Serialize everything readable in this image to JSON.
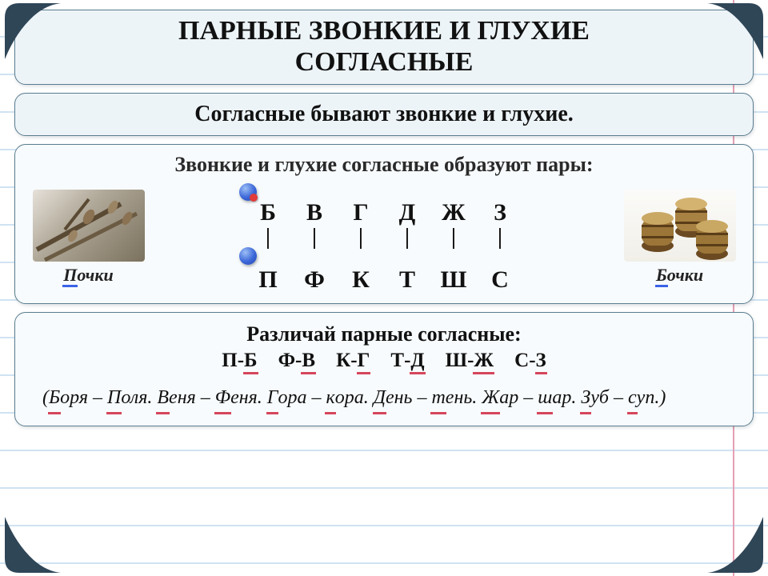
{
  "colors": {
    "card_bg": "#edf4f8",
    "card_bg_light": "#f7fbfd",
    "card_border": "#5b7d8f",
    "rule_line": "#d0e3f2",
    "margin_line": "#e59fb3",
    "underline_blue": "#3b63e6",
    "underline_red": "#d6465c",
    "dot_blue": "#3b66d8",
    "dot_red": "#e03a3a",
    "text": "#111111"
  },
  "typography": {
    "family": "Times New Roman",
    "title_pt": 34,
    "subtitle_pt": 28,
    "heading_pt": 26,
    "letter_pt": 30,
    "pair_pt": 25,
    "example_pt": 24,
    "side_label_pt": 22
  },
  "title_line1": "ПАРНЫЕ ЗВОНКИЕ И ГЛУХИЕ",
  "title_line2": "СОГЛАСНЫЕ",
  "subtitle": "Согласные бывают звонкие и глухие.",
  "pairs_heading": "Звонкие и глухие согласные образуют пары:",
  "left_image": {
    "semantic": "tree-branches-buds-photo",
    "label_head": "П",
    "label_rest": "очки"
  },
  "right_image": {
    "semantic": "wooden-barrels-photo",
    "label_head": "Б",
    "label_rest": "очки"
  },
  "voiced": [
    "Б",
    "В",
    "Г",
    "Д",
    "Ж",
    "З"
  ],
  "voiceless": [
    "П",
    "Ф",
    "К",
    "Т",
    "Ш",
    "С"
  ],
  "separator_char": "|",
  "distinguish_heading": "Различай парные согласные:",
  "pairs_list": [
    {
      "a": "П",
      "b": "Б"
    },
    {
      "a": "Ф",
      "b": "В"
    },
    {
      "a": "К",
      "b": "Г"
    },
    {
      "a": "Т",
      "b": "Д"
    },
    {
      "a": "Ш",
      "b": "Ж"
    },
    {
      "a": "С",
      "b": "З"
    }
  ],
  "examples_open": "(",
  "examples_close": ")",
  "examples_dash": " – ",
  "examples_period": ". ",
  "examples": [
    {
      "a_head": "Б",
      "a_rest": "оря",
      "b_head": "П",
      "b_rest": "оля"
    },
    {
      "a_head": "В",
      "a_rest": "еня",
      "b_head": "Ф",
      "b_rest": "еня"
    },
    {
      "a_head": "Г",
      "a_rest": "ора",
      "b_head": "к",
      "b_rest": "ора"
    },
    {
      "a_head": "Д",
      "a_rest": "ень",
      "b_head": "т",
      "b_rest": "ень"
    },
    {
      "a_head": "Ж",
      "a_rest": "ар",
      "b_head": "ш",
      "b_rest": "ар"
    },
    {
      "a_head": "З",
      "a_rest": "уб",
      "b_head": "с",
      "b_rest": "уп"
    }
  ]
}
